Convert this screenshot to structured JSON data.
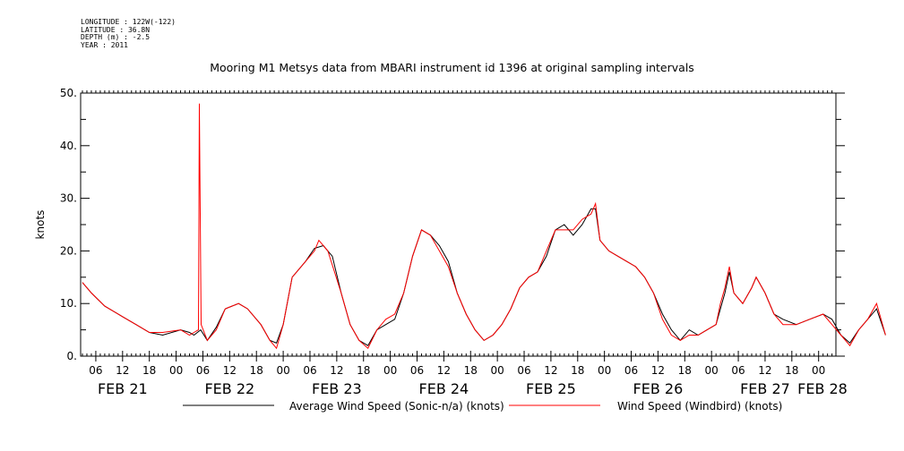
{
  "meta": {
    "longitude": "LONGITUDE : 122W(-122)",
    "latitude": "LATITUDE : 36.8N",
    "depth": "DEPTH (m) : -2.5",
    "year": "YEAR : 2011"
  },
  "chart_data": {
    "type": "line",
    "title": "Mooring M1 Metsys data from MBARI instrument id 1396 at original sampling intervals",
    "ylabel": "knots",
    "xlabel": "",
    "ylim": [
      0,
      50
    ],
    "yticks": [
      "0.",
      "10.",
      "20.",
      "30.",
      "40.",
      "50."
    ],
    "xlim_hours": [
      0,
      180
    ],
    "x_unit": "hours from FEB 21 03:00",
    "xtick_labels": [
      "06",
      "12",
      "18",
      "00",
      "06",
      "12",
      "18",
      "00",
      "06",
      "12",
      "18",
      "00",
      "06",
      "12",
      "18",
      "00",
      "06",
      "12",
      "18",
      "00",
      "06",
      "12",
      "18",
      "00",
      "06",
      "12",
      "18",
      "00",
      "06",
      "12",
      "18",
      "00"
    ],
    "day_labels": [
      "FEB 21",
      "FEB 22",
      "FEB 23",
      "FEB 24",
      "FEB 25",
      "FEB 26",
      "FEB 27",
      "FEB 28"
    ],
    "grid": false,
    "legend_position": "bottom",
    "series": [
      {
        "name": "Average Wind Speed (Sonic-n/a) (knots)",
        "color": "#000000",
        "points": [
          [
            0,
            14
          ],
          [
            2,
            12
          ],
          [
            5,
            9.5
          ],
          [
            9,
            7.5
          ],
          [
            12,
            6
          ],
          [
            15,
            4.5
          ],
          [
            18,
            4
          ],
          [
            22,
            5
          ],
          [
            24,
            4.5
          ],
          [
            25,
            4
          ],
          [
            26.5,
            5
          ],
          [
            28,
            3
          ],
          [
            30,
            5.5
          ],
          [
            32,
            9
          ],
          [
            35,
            10
          ],
          [
            37,
            9
          ],
          [
            40,
            6
          ],
          [
            42,
            3
          ],
          [
            43.5,
            2.5
          ],
          [
            45,
            6
          ],
          [
            47,
            15
          ],
          [
            50,
            18
          ],
          [
            52,
            20.5
          ],
          [
            54,
            21
          ],
          [
            56,
            19
          ],
          [
            58,
            12
          ],
          [
            60,
            6
          ],
          [
            62,
            3
          ],
          [
            64,
            2
          ],
          [
            66,
            5
          ],
          [
            68,
            6
          ],
          [
            70,
            7
          ],
          [
            72,
            12
          ],
          [
            74,
            19
          ],
          [
            76,
            24
          ],
          [
            78,
            23
          ],
          [
            80,
            21
          ],
          [
            82,
            18
          ],
          [
            84,
            12
          ],
          [
            86,
            8
          ],
          [
            88,
            5
          ],
          [
            90,
            3
          ],
          [
            92,
            4
          ],
          [
            94,
            6
          ],
          [
            96,
            9
          ],
          [
            98,
            13
          ],
          [
            100,
            15
          ],
          [
            102,
            16
          ],
          [
            104,
            19
          ],
          [
            106,
            24
          ],
          [
            108,
            25
          ],
          [
            110,
            23
          ],
          [
            112,
            25
          ],
          [
            114,
            28
          ],
          [
            115,
            28
          ],
          [
            116,
            22
          ],
          [
            118,
            20
          ],
          [
            120,
            19
          ],
          [
            122,
            18
          ],
          [
            124,
            17
          ],
          [
            126,
            15
          ],
          [
            128,
            12
          ],
          [
            130,
            8
          ],
          [
            132,
            5
          ],
          [
            134,
            3
          ],
          [
            136,
            5
          ],
          [
            138,
            4
          ],
          [
            140,
            5
          ],
          [
            142,
            6
          ],
          [
            143,
            9
          ],
          [
            144,
            12
          ],
          [
            145,
            16
          ],
          [
            146,
            12
          ],
          [
            148,
            10
          ],
          [
            150,
            13
          ],
          [
            151,
            15
          ],
          [
            153,
            12
          ],
          [
            155,
            8
          ],
          [
            157,
            7
          ],
          [
            160,
            6
          ],
          [
            163,
            7
          ],
          [
            166,
            8
          ],
          [
            168,
            7
          ],
          [
            170,
            4
          ],
          [
            172,
            2.5
          ],
          [
            174,
            5
          ],
          [
            176,
            7
          ],
          [
            178,
            9
          ],
          [
            180,
            4
          ]
        ]
      },
      {
        "name": "Wind Speed (Windbird) (knots)",
        "color": "#ff0000",
        "points": [
          [
            0,
            14
          ],
          [
            2,
            12
          ],
          [
            5,
            9.5
          ],
          [
            9,
            7.5
          ],
          [
            12,
            6
          ],
          [
            15,
            4.5
          ],
          [
            18,
            4.5
          ],
          [
            22,
            5
          ],
          [
            24,
            4
          ],
          [
            25,
            4.5
          ],
          [
            26,
            5
          ],
          [
            26.2,
            48
          ],
          [
            26.4,
            27
          ],
          [
            26.6,
            6
          ],
          [
            28,
            3
          ],
          [
            30,
            5
          ],
          [
            32,
            9
          ],
          [
            35,
            10
          ],
          [
            37,
            9
          ],
          [
            40,
            6
          ],
          [
            42,
            3
          ],
          [
            43.5,
            1.5
          ],
          [
            45,
            6
          ],
          [
            47,
            15
          ],
          [
            50,
            18
          ],
          [
            52,
            20
          ],
          [
            53,
            22
          ],
          [
            55,
            20
          ],
          [
            58,
            12
          ],
          [
            60,
            6
          ],
          [
            62,
            3
          ],
          [
            64,
            1.5
          ],
          [
            66,
            5
          ],
          [
            68,
            7
          ],
          [
            70,
            8
          ],
          [
            72,
            12
          ],
          [
            74,
            19
          ],
          [
            76,
            24
          ],
          [
            78,
            23
          ],
          [
            80,
            20
          ],
          [
            82,
            17
          ],
          [
            84,
            12
          ],
          [
            86,
            8
          ],
          [
            88,
            5
          ],
          [
            90,
            3
          ],
          [
            92,
            4
          ],
          [
            94,
            6
          ],
          [
            96,
            9
          ],
          [
            98,
            13
          ],
          [
            100,
            15
          ],
          [
            102,
            16
          ],
          [
            104,
            20
          ],
          [
            106,
            24
          ],
          [
            108,
            24
          ],
          [
            110,
            24
          ],
          [
            112,
            26
          ],
          [
            114,
            27
          ],
          [
            115,
            29
          ],
          [
            116,
            22
          ],
          [
            118,
            20
          ],
          [
            120,
            19
          ],
          [
            122,
            18
          ],
          [
            124,
            17
          ],
          [
            126,
            15
          ],
          [
            128,
            12
          ],
          [
            130,
            7
          ],
          [
            132,
            4
          ],
          [
            134,
            3
          ],
          [
            136,
            4
          ],
          [
            138,
            4
          ],
          [
            140,
            5
          ],
          [
            142,
            6
          ],
          [
            143,
            10
          ],
          [
            144,
            13
          ],
          [
            145,
            17
          ],
          [
            146,
            12
          ],
          [
            148,
            10
          ],
          [
            150,
            13
          ],
          [
            151,
            15
          ],
          [
            153,
            12
          ],
          [
            155,
            8
          ],
          [
            157,
            6
          ],
          [
            160,
            6
          ],
          [
            163,
            7
          ],
          [
            166,
            8
          ],
          [
            168,
            6
          ],
          [
            170,
            4
          ],
          [
            172,
            2
          ],
          [
            174,
            5
          ],
          [
            176,
            7
          ],
          [
            178,
            10
          ],
          [
            180,
            4
          ]
        ]
      }
    ]
  }
}
